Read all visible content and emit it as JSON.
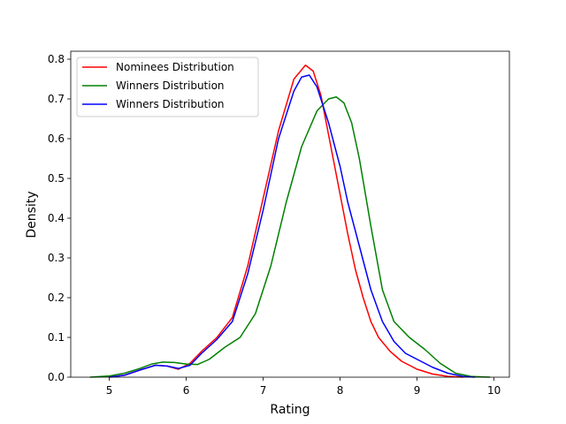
{
  "chart_data": {
    "type": "line",
    "title": "",
    "xlabel": "Rating",
    "ylabel": "Density",
    "xlim": [
      4.5,
      10.2
    ],
    "ylim": [
      0,
      0.82
    ],
    "xticks": [
      5,
      6,
      7,
      8,
      9,
      10
    ],
    "yticks": [
      0.0,
      0.1,
      0.2,
      0.3,
      0.4,
      0.5,
      0.6,
      0.7,
      0.8
    ],
    "xtick_labels": [
      "5",
      "6",
      "7",
      "8",
      "9",
      "10"
    ],
    "ytick_labels": [
      "0.0",
      "0.1",
      "0.2",
      "0.3",
      "0.4",
      "0.5",
      "0.6",
      "0.7",
      "0.8"
    ],
    "grid": false,
    "legend_position": "upper left",
    "series": [
      {
        "name": "Nominees Distribution",
        "color": "#ff0000",
        "x": [
          5.0,
          5.2,
          5.4,
          5.6,
          5.75,
          5.9,
          6.05,
          6.2,
          6.4,
          6.6,
          6.8,
          7.0,
          7.2,
          7.4,
          7.55,
          7.65,
          7.75,
          7.9,
          8.0,
          8.1,
          8.2,
          8.3,
          8.4,
          8.5,
          8.65,
          8.8,
          9.0,
          9.2,
          9.4,
          9.6
        ],
        "y": [
          0.0,
          0.005,
          0.018,
          0.03,
          0.028,
          0.02,
          0.035,
          0.065,
          0.1,
          0.15,
          0.28,
          0.45,
          0.62,
          0.75,
          0.785,
          0.77,
          0.71,
          0.56,
          0.46,
          0.36,
          0.27,
          0.2,
          0.14,
          0.1,
          0.065,
          0.04,
          0.02,
          0.008,
          0.002,
          0.0
        ]
      },
      {
        "name": "Winners Distribution",
        "color": "#008000",
        "x": [
          4.75,
          5.0,
          5.2,
          5.4,
          5.55,
          5.7,
          5.85,
          6.0,
          6.15,
          6.3,
          6.5,
          6.7,
          6.9,
          7.1,
          7.3,
          7.5,
          7.7,
          7.85,
          7.95,
          8.05,
          8.15,
          8.25,
          8.4,
          8.55,
          8.7,
          8.9,
          9.1,
          9.3,
          9.5,
          9.7,
          9.95
        ],
        "y": [
          0.0,
          0.003,
          0.01,
          0.022,
          0.033,
          0.038,
          0.037,
          0.033,
          0.032,
          0.045,
          0.075,
          0.1,
          0.16,
          0.28,
          0.44,
          0.58,
          0.67,
          0.7,
          0.705,
          0.69,
          0.64,
          0.55,
          0.38,
          0.22,
          0.14,
          0.1,
          0.07,
          0.035,
          0.01,
          0.002,
          0.0
        ]
      },
      {
        "name": "Winners Distribution",
        "color": "#0000ff",
        "x": [
          5.0,
          5.2,
          5.4,
          5.6,
          5.75,
          5.9,
          6.05,
          6.2,
          6.4,
          6.6,
          6.8,
          7.0,
          7.2,
          7.4,
          7.5,
          7.6,
          7.7,
          7.85,
          8.0,
          8.1,
          8.25,
          8.4,
          8.55,
          8.7,
          8.85,
          9.0,
          9.2,
          9.4,
          9.6,
          9.75
        ],
        "y": [
          0.0,
          0.005,
          0.018,
          0.03,
          0.028,
          0.022,
          0.03,
          0.06,
          0.095,
          0.14,
          0.26,
          0.42,
          0.6,
          0.72,
          0.755,
          0.76,
          0.73,
          0.64,
          0.53,
          0.44,
          0.33,
          0.22,
          0.14,
          0.09,
          0.06,
          0.045,
          0.025,
          0.01,
          0.002,
          0.0
        ]
      }
    ]
  }
}
